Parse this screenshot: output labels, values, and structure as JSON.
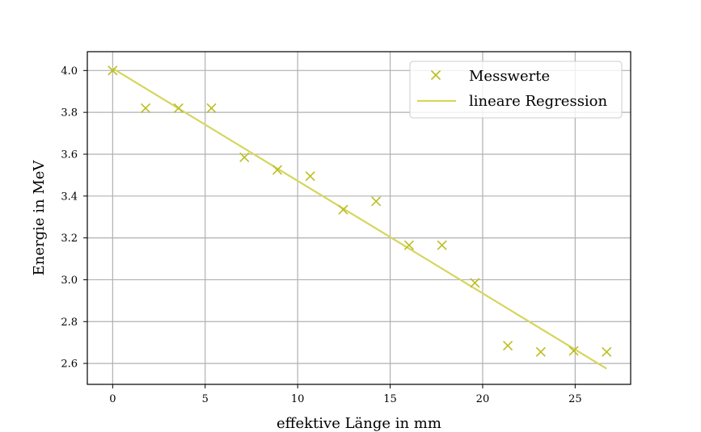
{
  "chart_data": {
    "type": "scatter",
    "xlabel": "effektive Länge in mm",
    "ylabel": "Energie in MeV",
    "xlim": [
      -1.37,
      28.0
    ],
    "ylim": [
      2.5,
      4.09
    ],
    "xticks": [
      0,
      5,
      10,
      15,
      20,
      25
    ],
    "xtick_labels": [
      "0",
      "5",
      "10",
      "15",
      "20",
      "25"
    ],
    "yticks": [
      2.6,
      2.8,
      3.0,
      3.2,
      3.4,
      3.6,
      3.8,
      4.0
    ],
    "ytick_labels": [
      "2.6",
      "2.8",
      "3.0",
      "3.2",
      "3.4",
      "3.6",
      "3.8",
      "4.0"
    ],
    "grid": true,
    "legend_position": "top-right",
    "series": [
      {
        "name": "Messwerte",
        "kind": "scatter",
        "marker": "x",
        "color": "#bcbd22",
        "x": [
          0.0,
          1.78,
          3.56,
          5.34,
          7.12,
          8.9,
          10.68,
          12.46,
          14.24,
          16.02,
          17.8,
          19.58,
          21.36,
          23.14,
          24.92,
          26.7
        ],
        "y": [
          4.0,
          3.82,
          3.82,
          3.82,
          3.585,
          3.525,
          3.495,
          3.335,
          3.375,
          3.165,
          3.165,
          2.985,
          2.685,
          2.655,
          2.66,
          2.655
        ]
      },
      {
        "name": "lineare Regression",
        "kind": "line",
        "color": "#d6d55e",
        "x": [
          0.0,
          26.7
        ],
        "y": [
          4.01,
          2.575
        ]
      }
    ]
  }
}
